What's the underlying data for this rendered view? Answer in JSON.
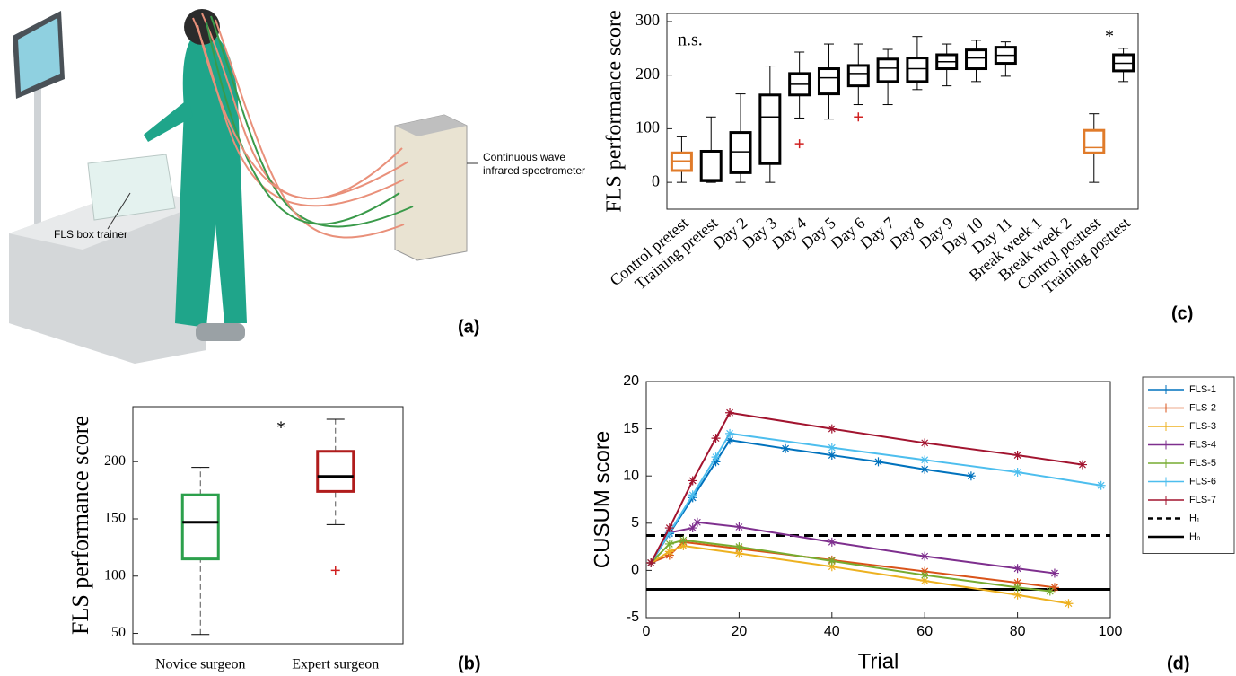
{
  "illustration": {
    "spectrometer_label": [
      "Continuous wave",
      "infrared spectrometer"
    ],
    "trainer_label": "FLS box trainer",
    "panel_label": "(a)"
  },
  "chart_data": [
    {
      "type": "boxplot",
      "panel_label": "(b)",
      "ylabel": "FLS performance score",
      "categories": [
        "Novice surgeon",
        "Expert surgeon"
      ],
      "colors": [
        "#2ca04c",
        "#b01c1c"
      ],
      "outlier_color": "#d02020",
      "boxes": [
        {
          "whisker_low": 49,
          "q1": 115,
          "median": 147,
          "q3": 171,
          "whisker_high": 195,
          "outliers": []
        },
        {
          "whisker_low": 145,
          "q1": 174,
          "median": 187,
          "q3": 209,
          "whisker_high": 237,
          "outliers": [
            105
          ]
        }
      ],
      "annotations": [
        "*"
      ],
      "ylim": [
        41,
        248
      ],
      "yticks": [
        50,
        100,
        150,
        200
      ]
    },
    {
      "type": "boxplot",
      "panel_label": "(c)",
      "ylabel": "FLS performance score",
      "categories": [
        "Control pretest",
        "Training pretest",
        "Day 2",
        "Day 3",
        "Day 4",
        "Day 5",
        "Day 6",
        "Day 7",
        "Day 8",
        "Day 9",
        "Day 10",
        "Day 11",
        "Break week 1",
        "Break week 2",
        "Control posttest",
        "Training posttest"
      ],
      "colors": [
        "#e07b2a",
        "#000000",
        "#000000",
        "#000000",
        "#000000",
        "#000000",
        "#000000",
        "#000000",
        "#000000",
        "#000000",
        "#000000",
        "#000000",
        "#000000",
        "#000000",
        "#e07b2a",
        "#000000"
      ],
      "outlier_color": "#d02020",
      "boxes": [
        {
          "whisker_low": 0,
          "q1": 22,
          "median": 40,
          "q3": 55,
          "whisker_high": 85,
          "outliers": []
        },
        {
          "whisker_low": 0,
          "q1": 3,
          "median": 5,
          "q3": 58,
          "whisker_high": 122,
          "outliers": []
        },
        {
          "whisker_low": 0,
          "q1": 18,
          "median": 57,
          "q3": 93,
          "whisker_high": 165,
          "outliers": []
        },
        {
          "whisker_low": 0,
          "q1": 35,
          "median": 122,
          "q3": 163,
          "whisker_high": 217,
          "outliers": []
        },
        {
          "whisker_low": 120,
          "q1": 163,
          "median": 183,
          "q3": 203,
          "whisker_high": 243,
          "outliers": [
            72
          ]
        },
        {
          "whisker_low": 118,
          "q1": 165,
          "median": 195,
          "q3": 212,
          "whisker_high": 258,
          "outliers": []
        },
        {
          "whisker_low": 145,
          "q1": 180,
          "median": 203,
          "q3": 218,
          "whisker_high": 258,
          "outliers": [
            122
          ]
        },
        {
          "whisker_low": 145,
          "q1": 188,
          "median": 213,
          "q3": 230,
          "whisker_high": 248,
          "outliers": []
        },
        {
          "whisker_low": 173,
          "q1": 188,
          "median": 212,
          "q3": 232,
          "whisker_high": 272,
          "outliers": []
        },
        {
          "whisker_low": 180,
          "q1": 212,
          "median": 225,
          "q3": 238,
          "whisker_high": 258,
          "outliers": []
        },
        {
          "whisker_low": 188,
          "q1": 212,
          "median": 232,
          "q3": 247,
          "whisker_high": 265,
          "outliers": []
        },
        {
          "whisker_low": 198,
          "q1": 222,
          "median": 237,
          "q3": 252,
          "whisker_high": 262,
          "outliers": []
        },
        null,
        null,
        {
          "whisker_low": 0,
          "q1": 55,
          "median": 65,
          "q3": 97,
          "whisker_high": 128,
          "outliers": []
        },
        {
          "whisker_low": 188,
          "q1": 208,
          "median": 222,
          "q3": 238,
          "whisker_high": 250,
          "outliers": []
        }
      ],
      "annotations": [
        "n.s.",
        "*"
      ],
      "ylim": [
        -50,
        315
      ],
      "yticks": [
        0,
        100,
        200,
        300
      ]
    },
    {
      "type": "line",
      "panel_label": "(d)",
      "xlabel": "Trial",
      "ylabel": "CUSUM score",
      "series": [
        {
          "name": "FLS-1",
          "color": "#0072bd",
          "x": [
            1,
            5,
            10,
            15,
            18,
            30,
            40,
            50,
            60,
            70
          ],
          "values": [
            0.8,
            3.9,
            7.7,
            11.5,
            13.8,
            12.9,
            12.2,
            11.5,
            10.7,
            10.0
          ]
        },
        {
          "name": "FLS-2",
          "color": "#d95319",
          "x": [
            1,
            5,
            8,
            20,
            40,
            60,
            80,
            88
          ],
          "values": [
            0.8,
            1.6,
            3.0,
            2.3,
            1.1,
            -0.1,
            -1.3,
            -1.8
          ]
        },
        {
          "name": "FLS-3",
          "color": "#edb120",
          "x": [
            1,
            5,
            8,
            20,
            40,
            60,
            80,
            91
          ],
          "values": [
            0.8,
            2.0,
            2.6,
            1.8,
            0.4,
            -1.1,
            -2.6,
            -3.5
          ]
        },
        {
          "name": "FLS-4",
          "color": "#7e2f8e",
          "x": [
            1,
            5,
            10,
            11,
            20,
            40,
            60,
            80,
            88
          ],
          "values": [
            0.8,
            4.0,
            4.5,
            5.1,
            4.6,
            3.0,
            1.5,
            0.2,
            -0.3
          ]
        },
        {
          "name": "FLS-5",
          "color": "#77ac30",
          "x": [
            1,
            5,
            8,
            20,
            40,
            60,
            80,
            87
          ],
          "values": [
            0.8,
            2.8,
            3.2,
            2.5,
            1.0,
            -0.5,
            -1.8,
            -2.2
          ]
        },
        {
          "name": "FLS-6",
          "color": "#4dbeee",
          "x": [
            1,
            5,
            10,
            15,
            18,
            40,
            60,
            80,
            98
          ],
          "values": [
            0.8,
            4.0,
            8.0,
            12.0,
            14.5,
            13.0,
            11.7,
            10.4,
            9.0
          ]
        },
        {
          "name": "FLS-7",
          "color": "#a2142f",
          "x": [
            1,
            5,
            10,
            15,
            18,
            40,
            60,
            80,
            94
          ],
          "values": [
            0.8,
            4.5,
            9.5,
            14.0,
            16.7,
            15.0,
            13.5,
            12.2,
            11.2
          ]
        }
      ],
      "reference_lines": [
        {
          "name": "H₁",
          "value": 3.7,
          "style": "dashed",
          "color": "#000000"
        },
        {
          "name": "H₀",
          "value": -2,
          "style": "solid",
          "color": "#000000"
        }
      ],
      "xlim": [
        0,
        100
      ],
      "xticks": [
        0,
        20,
        40,
        60,
        80,
        100
      ],
      "ylim": [
        -5,
        20
      ],
      "yticks": [
        -5,
        0,
        5,
        10,
        15,
        20
      ],
      "legend": "outside-right"
    }
  ]
}
